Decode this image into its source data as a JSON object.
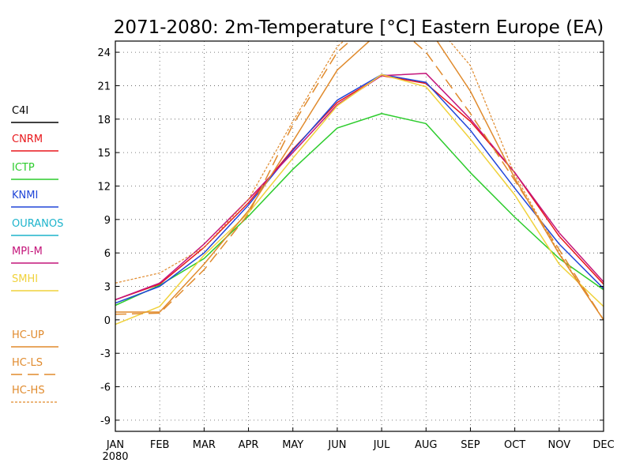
{
  "chart_data": {
    "type": "line",
    "title": "2071-2080: 2m-Temperature [°C] Eastern Europe (EA)",
    "xlabel": "",
    "ylabel": "",
    "categories": [
      "JAN",
      "FEB",
      "MAR",
      "APR",
      "MAY",
      "JUN",
      "JUL",
      "AUG",
      "SEP",
      "OCT",
      "NOV",
      "DEC"
    ],
    "x_sublabel": "2080",
    "ylim": [
      -10,
      25
    ],
    "yticks": [
      -9,
      -6,
      -3,
      0,
      3,
      6,
      9,
      12,
      15,
      18,
      21,
      24
    ],
    "grid": true,
    "legend_position": "left",
    "series": [
      {
        "name": "C4I",
        "color": "#000000",
        "dash": "solid",
        "values": [
          null,
          null,
          null,
          null,
          null,
          null,
          null,
          null,
          null,
          null,
          null,
          null
        ]
      },
      {
        "name": "CNRM",
        "color": "#e8171b",
        "dash": "solid",
        "values": [
          1.8,
          3.2,
          6.5,
          10.5,
          15.3,
          19.5,
          21.9,
          21.2,
          17.8,
          13.2,
          7.5,
          3.2
        ]
      },
      {
        "name": "ICTP",
        "color": "#2ccc2c",
        "dash": "solid",
        "values": [
          1.3,
          3.1,
          5.5,
          9.3,
          13.5,
          17.2,
          18.5,
          17.6,
          13.2,
          9.2,
          5.5,
          2.7
        ]
      },
      {
        "name": "KNMI",
        "color": "#2046d8",
        "dash": "solid",
        "values": [
          1.5,
          3.0,
          6.0,
          10.3,
          15.2,
          19.7,
          22.0,
          21.3,
          17.0,
          11.8,
          6.8,
          2.8
        ]
      },
      {
        "name": "OURANOS",
        "color": "#1eb4cc",
        "dash": "solid",
        "values": [
          null,
          null,
          null,
          null,
          null,
          null,
          null,
          null,
          null,
          null,
          null,
          null
        ]
      },
      {
        "name": "MPI-M",
        "color": "#c4157a",
        "dash": "solid",
        "values": [
          1.8,
          3.3,
          6.8,
          10.8,
          15.0,
          19.3,
          21.9,
          22.1,
          18.0,
          13.2,
          7.8,
          3.4
        ]
      },
      {
        "name": "SMHI",
        "color": "#f0d23c",
        "dash": "solid",
        "values": [
          -0.4,
          1.2,
          5.8,
          9.6,
          14.5,
          19.2,
          22.0,
          20.9,
          16.2,
          11.2,
          5.0,
          1.2
        ]
      },
      {
        "name": "HC-UP",
        "color": "#e08a2c",
        "dash": "solid",
        "values": [
          0.7,
          0.7,
          5.0,
          9.8,
          16.0,
          22.4,
          26.0,
          26.5,
          20.5,
          12.7,
          5.9,
          0.0
        ]
      },
      {
        "name": "HC-LS",
        "color": "#e08a2c",
        "dash": "long-dash",
        "values": [
          0.5,
          0.6,
          4.5,
          9.5,
          17.5,
          24.0,
          27.5,
          24.0,
          18.5,
          12.5,
          6.3,
          0.0
        ]
      },
      {
        "name": "HC-HS",
        "color": "#e08a2c",
        "dash": "short-dash",
        "values": [
          3.3,
          4.2,
          6.5,
          10.8,
          17.8,
          24.5,
          28.0,
          27.5,
          22.8,
          13.0,
          6.0,
          0.0
        ]
      }
    ]
  }
}
